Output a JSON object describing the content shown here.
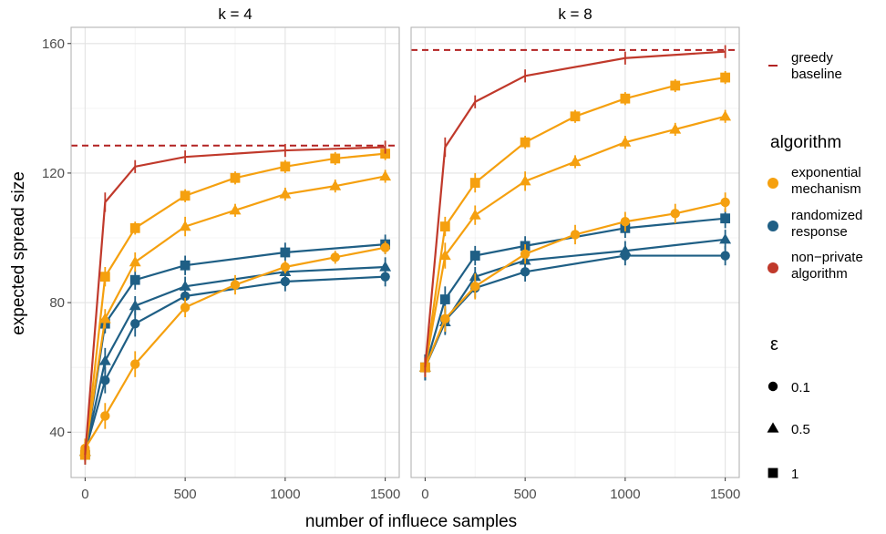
{
  "chart_data": {
    "type": "line",
    "xlabel": "number of influece samples",
    "ylabel": "expected spread  size",
    "x": [
      0,
      100,
      250,
      500,
      750,
      1000,
      1250,
      1500
    ],
    "x_ticks": [
      0,
      500,
      1000,
      1500
    ],
    "y_ticks": [
      40,
      80,
      120,
      160
    ],
    "ylim": [
      26,
      165
    ],
    "xlim": [
      -70,
      1570
    ],
    "grid": true,
    "legend_placement": "right",
    "colors": {
      "exponential": "#F5A00F",
      "randomized": "#1F5F85",
      "nonprivate": "#C0392B",
      "greedy": "#B22222"
    },
    "legend": {
      "greedy_label": [
        "greedy",
        "baseline"
      ],
      "algorithm_title": "algorithm",
      "algorithms": [
        {
          "key": "exponential",
          "lines": [
            "exponential",
            "mechanism"
          ]
        },
        {
          "key": "randomized",
          "lines": [
            "randomized",
            "response"
          ]
        },
        {
          "key": "nonprivate",
          "lines": [
            "non−private",
            "algorithm"
          ]
        }
      ],
      "epsilon_title": "ε",
      "epsilons": [
        {
          "shape": "circle",
          "label": "0.1"
        },
        {
          "shape": "triangle",
          "label": "0.5"
        },
        {
          "shape": "square",
          "label": "1"
        }
      ]
    },
    "panels": [
      {
        "title": "k = 4",
        "greedy_baseline": 128.5,
        "series": [
          {
            "algorithm": "nonprivate",
            "epsilon": null,
            "values": [
              33,
              111,
              122,
              125,
              null,
              127,
              null,
              128
            ],
            "errors": [
              3,
              3,
              2,
              2,
              null,
              2,
              null,
              2
            ]
          },
          {
            "algorithm": "exponential",
            "epsilon": "1",
            "values": [
              33,
              88,
              103,
              113,
              118.5,
              122,
              124.5,
              126
            ],
            "errors": [
              3,
              3,
              2,
              2,
              2,
              2,
              2,
              2
            ]
          },
          {
            "algorithm": "exponential",
            "epsilon": "0.5",
            "values": [
              34,
              75,
              92.5,
              103.5,
              108.5,
              113.5,
              116,
              119
            ],
            "errors": [
              3,
              3,
              3,
              3,
              2,
              2,
              2,
              2
            ]
          },
          {
            "algorithm": "exponential",
            "epsilon": "0.1",
            "values": [
              35,
              45,
              61,
              78.5,
              85.5,
              91,
              94,
              97
            ],
            "errors": [
              3,
              4,
              4,
              3,
              3,
              2,
              2,
              2
            ]
          },
          {
            "algorithm": "randomized",
            "epsilon": "1",
            "values": [
              33,
              73.5,
              87,
              91.5,
              null,
              95.5,
              null,
              98
            ],
            "errors": [
              3,
              3,
              3,
              3,
              null,
              3,
              null,
              3
            ]
          },
          {
            "algorithm": "randomized",
            "epsilon": "0.5",
            "values": [
              34,
              62,
              79,
              85,
              null,
              89.5,
              null,
              91
            ],
            "errors": [
              3,
              4,
              3,
              3,
              null,
              3,
              null,
              3
            ]
          },
          {
            "algorithm": "randomized",
            "epsilon": "0.1",
            "values": [
              34,
              56,
              73.5,
              82,
              null,
              86.5,
              null,
              88
            ],
            "errors": [
              3,
              4,
              4,
              3,
              null,
              3,
              null,
              3
            ]
          }
        ]
      },
      {
        "title": "k = 8",
        "greedy_baseline": 158,
        "series": [
          {
            "algorithm": "nonprivate",
            "epsilon": null,
            "values": [
              60,
              128,
              142,
              150,
              null,
              155.5,
              null,
              157.5
            ],
            "errors": [
              3,
              3,
              2,
              2,
              null,
              2,
              null,
              2
            ]
          },
          {
            "algorithm": "exponential",
            "epsilon": "1",
            "values": [
              60,
              103.5,
              117,
              129.5,
              137.5,
              143,
              147,
              149.5
            ],
            "errors": [
              3,
              3,
              3,
              2,
              2,
              2,
              2,
              2
            ]
          },
          {
            "algorithm": "exponential",
            "epsilon": "0.5",
            "values": [
              60,
              94.5,
              107,
              117.5,
              123.5,
              129.5,
              133.5,
              137.5
            ],
            "errors": [
              3,
              4,
              3,
              3,
              2,
              2,
              2,
              2
            ]
          },
          {
            "algorithm": "exponential",
            "epsilon": "0.1",
            "values": [
              60,
              75,
              85,
              95,
              101,
              105,
              107.5,
              111
            ],
            "errors": [
              3,
              4,
              4,
              3,
              3,
              3,
              3,
              3
            ]
          },
          {
            "algorithm": "randomized",
            "epsilon": "1",
            "values": [
              60,
              81,
              94.5,
              97.5,
              null,
              103,
              null,
              106
            ],
            "errors": [
              4,
              4,
              3,
              3,
              null,
              3,
              null,
              3
            ]
          },
          {
            "algorithm": "randomized",
            "epsilon": "0.5",
            "values": [
              60,
              74,
              88,
              93,
              null,
              96,
              null,
              99.5
            ],
            "errors": [
              4,
              4,
              3,
              3,
              null,
              3,
              null,
              3
            ]
          },
          {
            "algorithm": "randomized",
            "epsilon": "0.1",
            "values": [
              60,
              74.5,
              84.5,
              89.5,
              null,
              94.5,
              null,
              94.5
            ],
            "errors": [
              4,
              4,
              3,
              3,
              null,
              3,
              null,
              3
            ]
          }
        ]
      }
    ]
  }
}
